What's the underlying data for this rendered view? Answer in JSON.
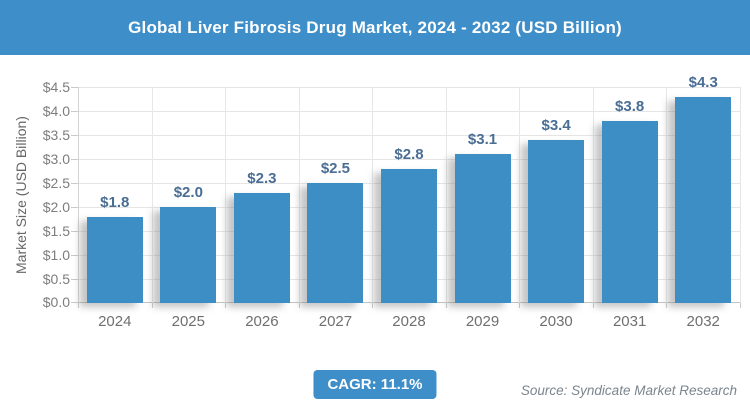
{
  "header": {
    "title": "Global Liver Fibrosis Drug Market, 2024 - 2032 (USD Billion)"
  },
  "chart_data": {
    "type": "bar",
    "title": "Global Liver Fibrosis Drug Market, 2024 - 2032 (USD Billion)",
    "categories": [
      "2024",
      "2025",
      "2026",
      "2027",
      "2028",
      "2029",
      "2030",
      "2031",
      "2032"
    ],
    "values": [
      1.8,
      2.0,
      2.3,
      2.5,
      2.8,
      3.1,
      3.4,
      3.8,
      4.3
    ],
    "value_labels": [
      "$1.8",
      "$2.0",
      "$2.3",
      "$2.5",
      "$2.8",
      "$3.1",
      "$3.4",
      "$3.8",
      "$4.3"
    ],
    "xlabel": "",
    "ylabel": "Market Size (USD Billion)",
    "ylim": [
      0,
      4.5
    ],
    "ytick_step": 0.5,
    "ytick_labels": [
      "$0.0",
      "$0.5",
      "$1.0",
      "$1.5",
      "$2.0",
      "$2.5",
      "$3.0",
      "$3.5",
      "$4.0",
      "$4.5"
    ],
    "grid": true,
    "legend": "none"
  },
  "footer": {
    "cagr_label": "CAGR: 11.1%",
    "source": "Source: Syndicate Market Research"
  },
  "colors": {
    "header_bg": "#3D8EC9",
    "bar": "#3E8EC6",
    "value_label": "#4A6D94",
    "badge_bg": "#3D8EC9",
    "axis_text": "#7D7D7D",
    "gridline": "#E5E5E5"
  }
}
